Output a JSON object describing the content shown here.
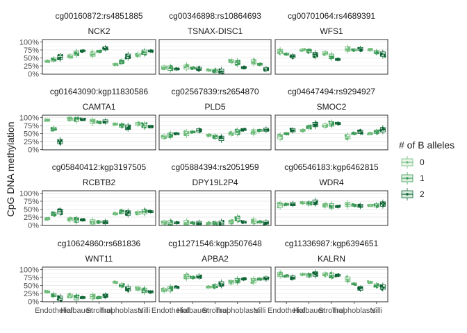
{
  "chart_data": {
    "type": "box-facet",
    "ylabel": "CpG DNA methylation",
    "yticks": [
      "0%",
      "25%",
      "50%",
      "75%",
      "100%"
    ],
    "ylim": [
      0,
      1
    ],
    "x_categories": [
      "Endothelial",
      "Hofbauer",
      "Stromal",
      "Trophoblasts",
      "Villi"
    ],
    "x_tick_labels_overlapping": [
      "Endothelial",
      "Hofbauer",
      "Stromal",
      "Trophoblasts",
      "Villi"
    ],
    "legend": {
      "title": "# of B alleles",
      "position": "right",
      "entries": [
        {
          "label": "0",
          "color": "#6dbb78"
        },
        {
          "label": "1",
          "color": "#3a9a55"
        },
        {
          "label": "2",
          "color": "#0b6232"
        }
      ]
    },
    "grid": true,
    "panels": [
      {
        "id": "cg00160872:rs4851885",
        "gene": "NCK2",
        "groups": [
          [
            0.4,
            0.45,
            0.52
          ],
          [
            0.55,
            0.65,
            0.72
          ],
          [
            0.62,
            0.7,
            0.8
          ],
          [
            0.3,
            0.38,
            0.55
          ],
          [
            0.6,
            0.68,
            0.72
          ]
        ]
      },
      {
        "id": "cg00346898:rs10864693",
        "gene": "TSNAX-DISC1",
        "groups": [
          [
            0.2,
            0.18,
            0.15
          ],
          [
            0.22,
            0.18,
            0.16
          ],
          [
            0.12,
            0.1,
            0.08
          ],
          [
            0.4,
            0.35,
            0.2
          ],
          [
            0.38,
            0.3,
            0.15
          ]
        ]
      },
      {
        "id": "cg00701064:rs4689391",
        "gene": "WFS1",
        "groups": [
          [
            0.7,
            0.62,
            0.55
          ],
          [
            0.75,
            0.72,
            0.6
          ],
          [
            0.65,
            0.55,
            0.45
          ],
          [
            0.78,
            0.75,
            0.78
          ],
          [
            0.75,
            0.68,
            0.62
          ]
        ]
      },
      {
        "id": "cg01643090:kgp11830586",
        "gene": "CAMTA1",
        "groups": [
          [
            0.92,
            0.65,
            0.25
          ],
          [
            0.96,
            0.95,
            0.94
          ],
          [
            0.88,
            0.85,
            0.88
          ],
          [
            0.8,
            0.75,
            0.7
          ],
          [
            0.8,
            0.75,
            0.72
          ]
        ]
      },
      {
        "id": "cg02567839:rs2654870",
        "gene": "PLD5",
        "groups": [
          [
            0.4,
            0.45,
            0.5
          ],
          [
            0.5,
            0.55,
            0.6
          ],
          [
            0.45,
            0.4,
            0.35
          ],
          [
            0.5,
            0.55,
            0.62
          ],
          [
            0.55,
            0.6,
            0.62
          ]
        ]
      },
      {
        "id": "cg04647494:rs9294927",
        "gene": "SMOC2",
        "groups": [
          [
            0.4,
            0.5,
            0.6
          ],
          [
            0.6,
            0.7,
            0.78
          ],
          [
            0.75,
            0.8,
            0.82
          ],
          [
            0.4,
            0.5,
            0.55
          ],
          [
            0.5,
            0.55,
            0.62
          ]
        ]
      },
      {
        "id": "cg05840412:kgp3197505",
        "gene": "RCBTB2",
        "groups": [
          [
            0.2,
            0.35,
            0.42
          ],
          [
            0.18,
            0.16,
            0.16
          ],
          [
            0.1,
            0.1,
            0.1
          ],
          [
            0.35,
            0.42,
            0.38
          ],
          [
            0.38,
            0.42,
            0.42
          ]
        ]
      },
      {
        "id": "cg05884394:rs2051959",
        "gene": "DPY19L2P4",
        "groups": [
          [
            0.08,
            0.07,
            0.07
          ],
          [
            0.08,
            0.07,
            0.07
          ],
          [
            0.06,
            0.05,
            0.06
          ],
          [
            0.1,
            0.2,
            0.1
          ],
          [
            0.12,
            0.1,
            0.08
          ]
        ]
      },
      {
        "id": "cg06546183:kgp6462815",
        "gene": "WDR4",
        "groups": [
          [
            0.62,
            0.65,
            0.66
          ],
          [
            0.7,
            0.68,
            0.72
          ],
          [
            0.62,
            0.6,
            0.58
          ],
          [
            0.65,
            0.62,
            0.6
          ],
          [
            0.62,
            0.62,
            0.66
          ]
        ]
      },
      {
        "id": "cg10624860:rs681836",
        "gene": "WNT11",
        "groups": [
          [
            0.3,
            0.2,
            0.1
          ],
          [
            0.18,
            0.12,
            0.12
          ],
          [
            0.15,
            0.12,
            0.18
          ],
          [
            0.6,
            0.5,
            0.4
          ],
          [
            0.4,
            0.35,
            0.3
          ]
        ]
      },
      {
        "id": "cg11271546:kgp3507648",
        "gene": "APBA2",
        "groups": [
          [
            0.35,
            0.4,
            0.45
          ],
          [
            0.78,
            0.75,
            0.78
          ],
          [
            0.45,
            0.48,
            0.55
          ],
          [
            0.6,
            0.65,
            0.7
          ],
          [
            0.65,
            0.7,
            0.72
          ]
        ]
      },
      {
        "id": "cg11336987:kgp6394651",
        "gene": "KALRN",
        "groups": [
          [
            0.85,
            0.8,
            0.75
          ],
          [
            0.85,
            0.82,
            0.86
          ],
          [
            0.85,
            0.82,
            0.82
          ],
          [
            0.7,
            0.55,
            0.4
          ],
          [
            0.6,
            0.5,
            0.45
          ]
        ]
      }
    ]
  }
}
